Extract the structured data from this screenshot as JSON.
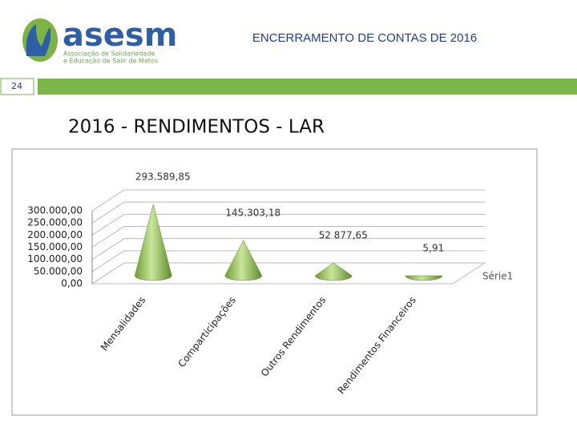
{
  "header": {
    "logo": "asesm",
    "logo_line_1": "Associação de Solidariedade",
    "logo_line_2": "e Educação de Salir de Matos",
    "title": "ENCERRAMENTO DE CONTAS DE 2016"
  },
  "slide_number": "24",
  "slide_title": "2016 - RENDIMENTOS - LAR",
  "chart_data": {
    "type": "cone3d",
    "categories": [
      "Mensalidades",
      "Comparticipações",
      "Outros Rendimentos",
      "Rendimentos Financeiros"
    ],
    "series": [
      {
        "name": "Série1",
        "color": "#8cc152",
        "values": [
          293589.85,
          145303.18,
          52877.65,
          5.91
        ],
        "value_labels": [
          "293.589,85",
          "145.303,18",
          "52 877,65",
          "5,91"
        ]
      }
    ],
    "ylim": [
      0,
      300000
    ],
    "yticks": [
      {
        "value": 0,
        "label": "0,00"
      },
      {
        "value": 50000,
        "label": "50.000,00"
      },
      {
        "value": 100000,
        "label": "100.000,00"
      },
      {
        "value": 150000,
        "label": "150.000,00"
      },
      {
        "value": 200000,
        "label": "200.000,00"
      },
      {
        "value": 250000,
        "label": "250.000,00"
      },
      {
        "value": 300000,
        "label": "300.000,00"
      }
    ],
    "grid": true
  }
}
